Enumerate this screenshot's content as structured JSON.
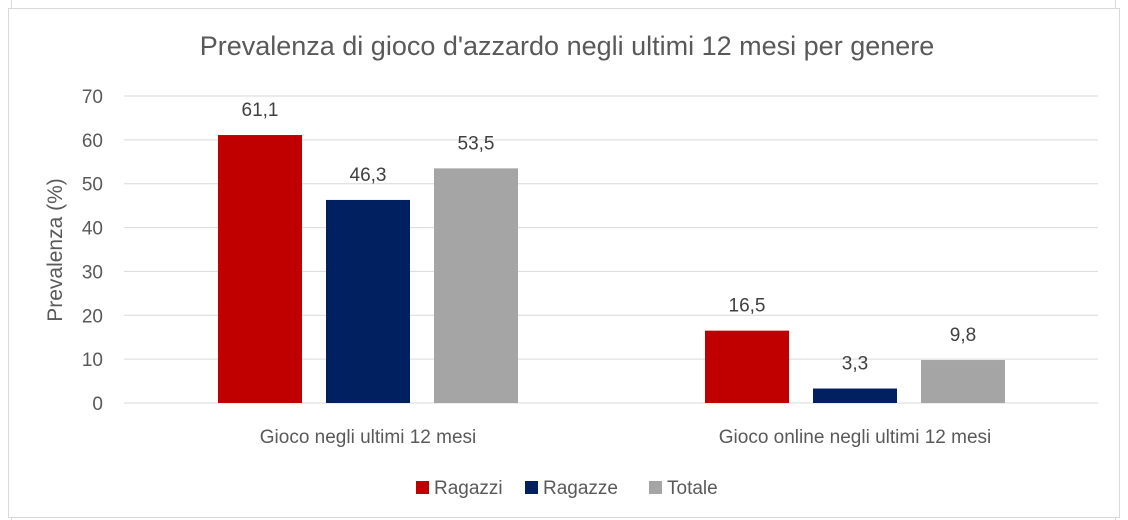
{
  "chart_data": {
    "type": "bar",
    "title": "Prevalenza di gioco d'azzardo negli ultimi 12 mesi per genere",
    "xlabel": "",
    "ylabel": "Prevalenza (%)",
    "ylim": [
      0,
      70
    ],
    "yticks": [
      0,
      10,
      20,
      30,
      40,
      50,
      60,
      70
    ],
    "grid": true,
    "legend_position": "bottom",
    "categories": [
      "Gioco negli ultimi 12 mesi",
      "Gioco online negli ultimi 12 mesi"
    ],
    "series": [
      {
        "name": "Ragazzi",
        "color": "#c00000",
        "values": [
          61.1,
          16.5
        ],
        "labels": [
          "61,1",
          "16,5"
        ]
      },
      {
        "name": "Ragazze",
        "color": "#002060",
        "values": [
          46.3,
          3.3
        ],
        "labels": [
          "46,3",
          "3,3"
        ]
      },
      {
        "name": "Totale",
        "color": "#a5a5a5",
        "values": [
          53.5,
          9.8
        ],
        "labels": [
          "53,5",
          "9,8"
        ]
      }
    ]
  }
}
